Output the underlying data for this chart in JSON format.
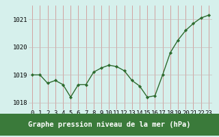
{
  "x": [
    0,
    1,
    2,
    3,
    4,
    5,
    6,
    7,
    8,
    9,
    10,
    11,
    12,
    13,
    14,
    15,
    16,
    17,
    18,
    19,
    20,
    21,
    22,
    23
  ],
  "y": [
    1019.0,
    1019.0,
    1018.7,
    1018.8,
    1018.65,
    1018.2,
    1018.65,
    1018.65,
    1019.1,
    1019.25,
    1019.35,
    1019.3,
    1019.15,
    1018.8,
    1018.6,
    1018.2,
    1018.25,
    1019.0,
    1019.8,
    1020.25,
    1020.6,
    1020.85,
    1021.05,
    1021.15
  ],
  "ylim": [
    1017.75,
    1021.5
  ],
  "yticks": [
    1018,
    1019,
    1020,
    1021
  ],
  "xticks": [
    0,
    1,
    2,
    3,
    4,
    5,
    6,
    7,
    8,
    9,
    10,
    11,
    12,
    13,
    14,
    15,
    16,
    17,
    18,
    19,
    20,
    21,
    22,
    23
  ],
  "line_color": "#2d6a2d",
  "marker_color": "#2d6a2d",
  "bg_color": "#d6f0ec",
  "vgrid_color": "#d08080",
  "hgrid_color": "#c8b8b8",
  "xlabel": "Graphe pression niveau de la mer (hPa)",
  "xlabel_bg": "#3a7a3a",
  "xlabel_fg": "#ffffff",
  "tick_fontsize": 6.5,
  "label_fontsize": 7.5,
  "xlim": [
    -0.5,
    23.5
  ]
}
